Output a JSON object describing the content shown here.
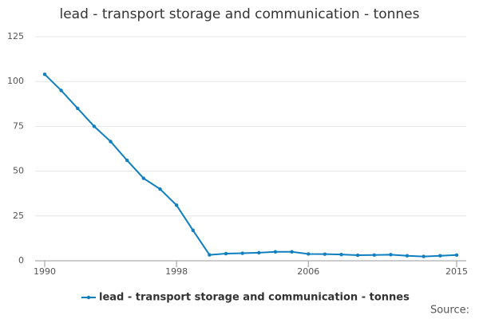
{
  "chart_data": {
    "type": "line",
    "title": "lead - transport storage and communication - tonnes",
    "x": [
      1990,
      1991,
      1992,
      1993,
      1994,
      1995,
      1996,
      1997,
      1998,
      1999,
      2000,
      2001,
      2002,
      2003,
      2004,
      2005,
      2006,
      2007,
      2008,
      2009,
      2010,
      2011,
      2012,
      2013,
      2014,
      2015
    ],
    "series": [
      {
        "name": "lead - transport storage and communication - tonnes",
        "color": "#0f7fbf",
        "values": [
          104,
          95,
          85,
          75,
          66.5,
          56,
          46,
          40,
          31,
          17,
          3.3,
          4,
          4.2,
          4.5,
          5,
          5,
          3.8,
          3.7,
          3.5,
          3.1,
          3.2,
          3.4,
          2.8,
          2.4,
          2.8,
          3.2
        ]
      }
    ],
    "xlim": [
      1990,
      2015
    ],
    "xticks": [
      1990,
      1998,
      2006,
      2015
    ],
    "ylim": [
      0,
      125
    ],
    "yticks": [
      0,
      25,
      50,
      75,
      100,
      125
    ],
    "grid": true,
    "legend": "bottom",
    "source": "Source:"
  }
}
